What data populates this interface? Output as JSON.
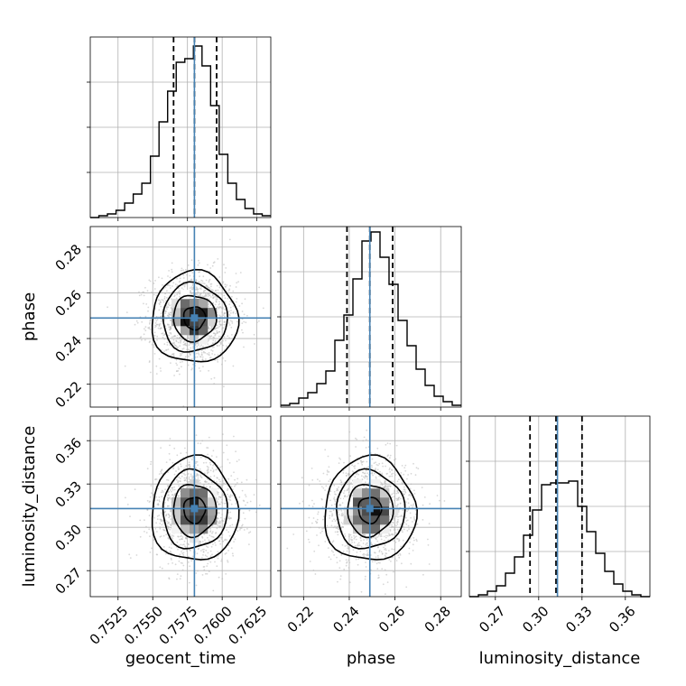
{
  "chart_data": {
    "type": "corner",
    "parameters": [
      {
        "name": "geocent_time",
        "label": "geocent_time",
        "range": [
          0.7505,
          0.7635
        ],
        "ticks": [
          0.7525,
          0.755,
          0.7575,
          0.76,
          0.7625
        ],
        "tick_labels": [
          "0.7525",
          "0.7550",
          "0.7575",
          "0.7600",
          "0.7625"
        ],
        "truth": 0.758,
        "quantiles": [
          0.7565,
          0.758,
          0.7596
        ],
        "hist": [
          0.0,
          0.01,
          0.02,
          0.04,
          0.08,
          0.13,
          0.19,
          0.34,
          0.53,
          0.7,
          0.86,
          0.88,
          0.95,
          0.84,
          0.62,
          0.35,
          0.19,
          0.1,
          0.05,
          0.02,
          0.01
        ]
      },
      {
        "name": "phase",
        "label": "phase",
        "range": [
          0.21,
          0.289
        ],
        "ticks": [
          0.22,
          0.24,
          0.26,
          0.28
        ],
        "tick_labels": [
          "0.22",
          "0.24",
          "0.26",
          "0.28"
        ],
        "truth": 0.249,
        "quantiles": [
          0.239,
          0.249,
          0.259
        ],
        "hist": [
          0.01,
          0.02,
          0.05,
          0.08,
          0.13,
          0.2,
          0.37,
          0.51,
          0.71,
          0.92,
          0.97,
          0.83,
          0.68,
          0.48,
          0.34,
          0.21,
          0.12,
          0.06,
          0.03,
          0.01
        ]
      },
      {
        "name": "luminosity_distance",
        "label": "luminosity_distance",
        "range": [
          0.252,
          0.377
        ],
        "ticks": [
          0.27,
          0.3,
          0.33,
          0.36
        ],
        "tick_labels": [
          "0.27",
          "0.30",
          "0.33",
          "0.36"
        ],
        "truth": 0.313,
        "quantiles": [
          0.294,
          0.312,
          0.33
        ],
        "hist": [
          0.0,
          0.01,
          0.03,
          0.06,
          0.13,
          0.22,
          0.34,
          0.48,
          0.62,
          0.63,
          0.63,
          0.64,
          0.5,
          0.36,
          0.24,
          0.14,
          0.07,
          0.03,
          0.01,
          0.0
        ]
      }
    ],
    "contour_levels": [
      0.118,
      0.393,
      0.675,
      0.865
    ],
    "grid": true
  }
}
